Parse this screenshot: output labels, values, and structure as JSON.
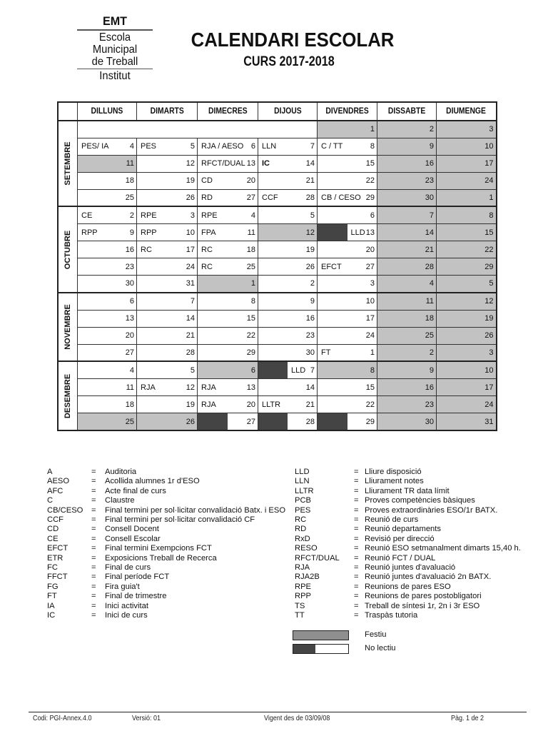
{
  "logo": {
    "lines": [
      "EMT",
      "Escola",
      "Municipal",
      "de Treball",
      "Institut"
    ]
  },
  "title": "CALENDARI ESCOLAR",
  "subtitle": "CURS 2017-2018",
  "colors": {
    "festiu": "#c2c2c2",
    "no_lectiu": "#444444"
  },
  "days": [
    "DILLUNS",
    "DIMARTS",
    "DIMECRES",
    "DIJOUS",
    "DIVENDRES",
    "DISSABTE",
    "DIUMENGE"
  ],
  "months": [
    {
      "name": "SETEMBRE",
      "weeks": [
        [
          {
            "t": "e"
          },
          {
            "t": "e"
          },
          {
            "t": "e"
          },
          {
            "t": "e"
          },
          {
            "n": "1",
            "t": "f"
          },
          {
            "n": "2",
            "t": "f"
          },
          {
            "n": "3",
            "t": "f"
          }
        ],
        [
          {
            "n": "4",
            "l": "PES/ IA"
          },
          {
            "n": "5",
            "l": "PES"
          },
          {
            "n": "6",
            "l": "RJA / AESO"
          },
          {
            "n": "7",
            "l": "LLN"
          },
          {
            "n": "8",
            "l": "C / TT"
          },
          {
            "n": "9",
            "t": "f"
          },
          {
            "n": "10",
            "t": "f"
          }
        ],
        [
          {
            "n": "11",
            "t": "f"
          },
          {
            "n": "12"
          },
          {
            "n": "13",
            "l": "RFCT/DUAL"
          },
          {
            "n": "14",
            "l": "IC",
            "b": true
          },
          {
            "n": "15"
          },
          {
            "n": "16",
            "t": "f"
          },
          {
            "n": "17",
            "t": "f"
          }
        ],
        [
          {
            "n": "18"
          },
          {
            "n": "19"
          },
          {
            "n": "20",
            "l": "CD"
          },
          {
            "n": "21"
          },
          {
            "n": "22"
          },
          {
            "n": "23",
            "t": "f"
          },
          {
            "n": "24",
            "t": "f"
          }
        ],
        [
          {
            "n": "25"
          },
          {
            "n": "26"
          },
          {
            "n": "27",
            "l": "RD"
          },
          {
            "n": "28",
            "l": "CCF"
          },
          {
            "n": "29",
            "l": "CB / CESO"
          },
          {
            "n": "30",
            "t": "f"
          },
          {
            "n": "1",
            "t": "f"
          }
        ]
      ]
    },
    {
      "name": "OCTUBRE",
      "weeks": [
        [
          {
            "n": "2",
            "l": "CE"
          },
          {
            "n": "3",
            "l": "RPE"
          },
          {
            "n": "4",
            "l": "RPE"
          },
          {
            "n": "5"
          },
          {
            "n": "6"
          },
          {
            "n": "7",
            "t": "f"
          },
          {
            "n": "8",
            "t": "f"
          }
        ],
        [
          {
            "n": "9",
            "l": "RPP"
          },
          {
            "n": "10",
            "l": "RPP"
          },
          {
            "n": "11",
            "l": "FPA"
          },
          {
            "n": "12",
            "t": "f"
          },
          {
            "n": "13",
            "l": "LLD",
            "t": "nl"
          },
          {
            "n": "14",
            "t": "f"
          },
          {
            "n": "15",
            "t": "f"
          }
        ],
        [
          {
            "n": "16"
          },
          {
            "n": "17",
            "l": "RC"
          },
          {
            "n": "18",
            "l": "RC"
          },
          {
            "n": "19"
          },
          {
            "n": "20"
          },
          {
            "n": "21",
            "t": "f"
          },
          {
            "n": "22",
            "t": "f"
          }
        ],
        [
          {
            "n": "23"
          },
          {
            "n": "24"
          },
          {
            "n": "25",
            "l": "RC"
          },
          {
            "n": "26"
          },
          {
            "n": "27",
            "l": "EFCT"
          },
          {
            "n": "28",
            "t": "f"
          },
          {
            "n": "29",
            "t": "f"
          }
        ],
        [
          {
            "n": "30"
          },
          {
            "n": "31"
          },
          {
            "n": "1",
            "t": "f"
          },
          {
            "n": "2"
          },
          {
            "n": "3"
          },
          {
            "n": "4",
            "t": "f"
          },
          {
            "n": "5",
            "t": "f"
          }
        ]
      ]
    },
    {
      "name": "NOVEMBRE",
      "weeks": [
        [
          {
            "n": "6"
          },
          {
            "n": "7"
          },
          {
            "n": "8"
          },
          {
            "n": "9"
          },
          {
            "n": "10"
          },
          {
            "n": "11",
            "t": "f"
          },
          {
            "n": "12",
            "t": "f"
          }
        ],
        [
          {
            "n": "13"
          },
          {
            "n": "14"
          },
          {
            "n": "15"
          },
          {
            "n": "16"
          },
          {
            "n": "17"
          },
          {
            "n": "18",
            "t": "f"
          },
          {
            "n": "19",
            "t": "f"
          }
        ],
        [
          {
            "n": "20"
          },
          {
            "n": "21"
          },
          {
            "n": "22"
          },
          {
            "n": "23"
          },
          {
            "n": "24"
          },
          {
            "n": "25",
            "t": "f"
          },
          {
            "n": "26",
            "t": "f"
          }
        ],
        [
          {
            "n": "27"
          },
          {
            "n": "28"
          },
          {
            "n": "29"
          },
          {
            "n": "30"
          },
          {
            "n": "1",
            "l": "FT"
          },
          {
            "n": "2",
            "t": "f"
          },
          {
            "n": "3",
            "t": "f"
          }
        ]
      ]
    },
    {
      "name": "DESEMBRE",
      "weeks": [
        [
          {
            "n": "4"
          },
          {
            "n": "5"
          },
          {
            "n": "6",
            "t": "f"
          },
          {
            "n": "7",
            "l": "LLD",
            "t": "nl"
          },
          {
            "n": "8",
            "t": "f"
          },
          {
            "n": "9",
            "t": "f"
          },
          {
            "n": "10",
            "t": "f"
          }
        ],
        [
          {
            "n": "11"
          },
          {
            "n": "12",
            "l": "RJA"
          },
          {
            "n": "13",
            "l": "RJA"
          },
          {
            "n": "14"
          },
          {
            "n": "15"
          },
          {
            "n": "16",
            "t": "f"
          },
          {
            "n": "17",
            "t": "f"
          }
        ],
        [
          {
            "n": "18"
          },
          {
            "n": "19"
          },
          {
            "n": "20",
            "l": "RJA"
          },
          {
            "n": "21",
            "l": "LLTR"
          },
          {
            "n": "22"
          },
          {
            "n": "23",
            "t": "f"
          },
          {
            "n": "24",
            "t": "f"
          }
        ],
        [
          {
            "n": "25",
            "t": "f"
          },
          {
            "n": "26",
            "t": "f"
          },
          {
            "n": "27",
            "t": "nl"
          },
          {
            "n": "28",
            "t": "nl"
          },
          {
            "n": "29",
            "t": "nl"
          },
          {
            "n": "30",
            "t": "f"
          },
          {
            "n": "31",
            "t": "f"
          }
        ]
      ]
    }
  ],
  "legend_left": [
    {
      "code": "A",
      "eq": "=",
      "desc": "Auditoria"
    },
    {
      "code": "AESO",
      "eq": "=",
      "desc": "Acollida alumnes 1r d'ESO"
    },
    {
      "code": "AFC",
      "eq": "=",
      "desc": "Acte final de curs"
    },
    {
      "code": "C",
      "eq": "=",
      "desc": "Claustre"
    },
    {
      "code": "CB/CESO",
      "eq": "=",
      "desc": "Final termini per sol·licitar convalidació Batx. i ESO"
    },
    {
      "code": "CCF",
      "eq": "=",
      "desc": "Final termini per sol·licitar convalidació CF"
    },
    {
      "code": "CD",
      "eq": "=",
      "desc": "Consell Docent"
    },
    {
      "code": "CE",
      "eq": "=",
      "desc": "Consell Escolar"
    },
    {
      "code": "EFCT",
      "eq": "=",
      "desc": "Final termini Exempcions FCT"
    },
    {
      "code": "ETR",
      "eq": "=",
      "desc": "Exposicions Treball de Recerca"
    },
    {
      "code": "FC",
      "eq": "=",
      "desc": "Final de curs"
    },
    {
      "code": "FFCT",
      "eq": "=",
      "desc": "Final període FCT"
    },
    {
      "code": "FG",
      "eq": "=",
      "desc": "Fira guia't"
    },
    {
      "code": "FT",
      "eq": "=",
      "desc": "Final de trimestre"
    },
    {
      "code": "IA",
      "eq": "=",
      "desc": "Inici activitat"
    },
    {
      "code": "IC",
      "eq": "=",
      "desc": "Inici de curs"
    }
  ],
  "legend_right": [
    {
      "code": "LLD",
      "eq": "=",
      "desc": "Lliure disposició"
    },
    {
      "code": "LLN",
      "eq": "=",
      "desc": "Lliurament notes"
    },
    {
      "code": "LLTR",
      "eq": "=",
      "desc": "Lliurament TR data límit"
    },
    {
      "code": "PCB",
      "eq": "=",
      "desc": "Proves competències bàsiques"
    },
    {
      "code": "PES",
      "eq": "=",
      "desc": "Proves extraordinàries ESO/1r BATX."
    },
    {
      "code": "RC",
      "eq": "=",
      "desc": "Reunió de curs"
    },
    {
      "code": "RD",
      "eq": "=",
      "desc": "Reunió departaments"
    },
    {
      "code": "RxD",
      "eq": "=",
      "desc": "Revisió per direcció"
    },
    {
      "code": "RESO",
      "eq": "=",
      "desc": "Reunió ESO setmanalment dimarts 15,40 h."
    },
    {
      "code": "RFCT/DUAL",
      "eq": "=",
      "desc": "Reunió FCT / DUAL"
    },
    {
      "code": "RJA",
      "eq": "=",
      "desc": "Reunió juntes d'avaluació"
    },
    {
      "code": "RJA2B",
      "eq": "=",
      "desc": "Reunió juntes d'avaluació 2n BATX."
    },
    {
      "code": "RPE",
      "eq": "=",
      "desc": "Reunions de pares ESO"
    },
    {
      "code": "RPP",
      "eq": "=",
      "desc": "Reunions de pares postobligatori"
    },
    {
      "code": "TS",
      "eq": "=",
      "desc": "Treball de síntesi 1r, 2n i 3r ESO"
    },
    {
      "code": "TT",
      "eq": "=",
      "desc": "Traspàs tutoria"
    }
  ],
  "swatches": {
    "festiu": "Festiu",
    "no_lectiu": "No lectiu"
  },
  "footer": {
    "code": "Codi: PGI-Annex.4.0",
    "version": "Versió: 01",
    "valid": "Vigent des de 03/09/08",
    "page": "Pàg. 1 de 2"
  }
}
